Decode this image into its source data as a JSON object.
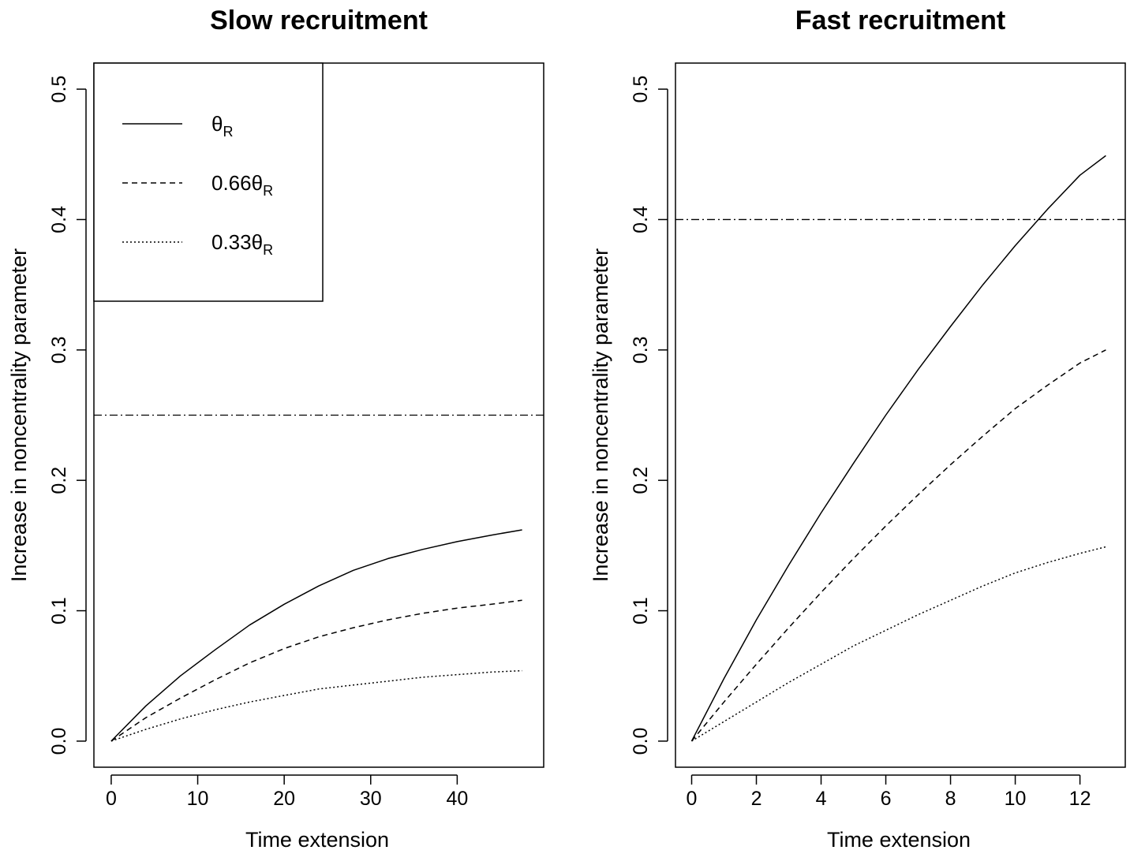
{
  "chart_data": [
    {
      "type": "line",
      "title": "Slow recruitment",
      "xlabel": "Time extension",
      "ylabel": "Increase in noncentrality parameter",
      "xlim": [
        -2,
        50
      ],
      "ylim": [
        -0.02,
        0.52
      ],
      "x_ticks": [
        0,
        10,
        20,
        30,
        40
      ],
      "y_ticks": [
        0.0,
        0.1,
        0.2,
        0.3,
        0.4,
        0.5
      ],
      "x_tick_labels": [
        "0",
        "10",
        "20",
        "30",
        "40"
      ],
      "y_tick_labels": [
        "0.0",
        "0.1",
        "0.2",
        "0.3",
        "0.4",
        "0.5"
      ],
      "x": [
        0,
        4,
        8,
        12,
        16,
        20,
        24,
        28,
        32,
        36,
        40,
        44,
        47.5
      ],
      "series": [
        {
          "name": "θR",
          "style": "solid",
          "values": [
            0,
            0.027,
            0.05,
            0.07,
            0.089,
            0.105,
            0.119,
            0.131,
            0.14,
            0.147,
            0.153,
            0.158,
            0.162
          ]
        },
        {
          "name": "0.66θR",
          "style": "dashed",
          "values": [
            0,
            0.018,
            0.033,
            0.047,
            0.06,
            0.071,
            0.08,
            0.087,
            0.093,
            0.098,
            0.102,
            0.105,
            0.108
          ]
        },
        {
          "name": "0.33θR",
          "style": "dotted",
          "values": [
            0,
            0.009,
            0.017,
            0.024,
            0.03,
            0.035,
            0.04,
            0.043,
            0.046,
            0.049,
            0.051,
            0.053,
            0.054
          ]
        }
      ],
      "reference_line": {
        "y": 0.25,
        "style": "dotdash"
      },
      "legend": {
        "position": "top-left",
        "entries": [
          {
            "style": "solid",
            "prefix": "",
            "symbol": "θ",
            "sub": "R"
          },
          {
            "style": "dashed",
            "prefix": "0.66",
            "symbol": "θ",
            "sub": "R"
          },
          {
            "style": "dotted",
            "prefix": "0.33",
            "symbol": "θ",
            "sub": "R"
          }
        ]
      }
    },
    {
      "type": "line",
      "title": "Fast recruitment",
      "xlabel": "Time extension",
      "ylabel": "Increase in noncentrality parameter",
      "xlim": [
        -0.5,
        13.4
      ],
      "ylim": [
        -0.02,
        0.52
      ],
      "x_ticks": [
        0,
        2,
        4,
        6,
        8,
        10,
        12
      ],
      "y_ticks": [
        0.0,
        0.1,
        0.2,
        0.3,
        0.4,
        0.5
      ],
      "x_tick_labels": [
        "0",
        "2",
        "4",
        "6",
        "8",
        "10",
        "12"
      ],
      "y_tick_labels": [
        "0.0",
        "0.1",
        "0.2",
        "0.3",
        "0.4",
        "0.5"
      ],
      "x": [
        0,
        1,
        2,
        3,
        4,
        5,
        6,
        7,
        8,
        9,
        10,
        11,
        12,
        12.8
      ],
      "series": [
        {
          "name": "θR",
          "style": "solid",
          "values": [
            0,
            0.048,
            0.093,
            0.135,
            0.175,
            0.213,
            0.25,
            0.285,
            0.318,
            0.35,
            0.38,
            0.408,
            0.434,
            0.449
          ]
        },
        {
          "name": "0.66θR",
          "style": "dashed",
          "values": [
            0,
            0.03,
            0.059,
            0.087,
            0.114,
            0.14,
            0.165,
            0.189,
            0.212,
            0.234,
            0.255,
            0.273,
            0.29,
            0.3
          ]
        },
        {
          "name": "0.33θR",
          "style": "dotted",
          "values": [
            0,
            0.015,
            0.03,
            0.045,
            0.059,
            0.073,
            0.085,
            0.097,
            0.108,
            0.119,
            0.129,
            0.137,
            0.144,
            0.149
          ]
        }
      ],
      "reference_line": {
        "y": 0.4,
        "style": "dotdash"
      }
    }
  ]
}
